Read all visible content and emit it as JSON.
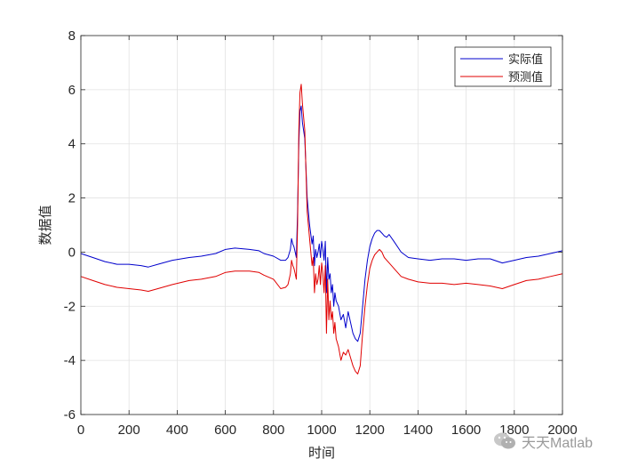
{
  "chart_data": {
    "type": "line",
    "xlabel": "时间",
    "ylabel": "数据值",
    "xlim": [
      0,
      2000
    ],
    "ylim": [
      -6,
      8
    ],
    "xticks": [
      0,
      200,
      400,
      600,
      800,
      1000,
      1200,
      1400,
      1600,
      1800,
      2000
    ],
    "yticks": [
      -6,
      -4,
      -2,
      0,
      2,
      4,
      6,
      8
    ],
    "grid": true,
    "legend_position": "top-right",
    "series": [
      {
        "name": "实际值",
        "color": "#0000cc",
        "x": [
          0,
          50,
          100,
          150,
          200,
          250,
          280,
          320,
          380,
          450,
          500,
          560,
          600,
          640,
          700,
          740,
          760,
          800,
          830,
          850,
          860,
          870,
          875,
          880,
          885,
          890,
          895,
          900,
          905,
          910,
          915,
          920,
          930,
          940,
          950,
          960,
          965,
          970,
          975,
          980,
          985,
          990,
          995,
          1000,
          1005,
          1010,
          1015,
          1020,
          1025,
          1030,
          1035,
          1040,
          1045,
          1050,
          1055,
          1060,
          1070,
          1080,
          1090,
          1100,
          1110,
          1120,
          1130,
          1140,
          1150,
          1160,
          1170,
          1180,
          1190,
          1200,
          1210,
          1220,
          1230,
          1240,
          1250,
          1260,
          1270,
          1280,
          1300,
          1330,
          1360,
          1400,
          1450,
          1500,
          1550,
          1600,
          1650,
          1700,
          1750,
          1800,
          1850,
          1900,
          1950,
          2000
        ],
        "y": [
          -0.05,
          -0.2,
          -0.35,
          -0.45,
          -0.45,
          -0.5,
          -0.55,
          -0.45,
          -0.3,
          -0.2,
          -0.15,
          -0.05,
          0.1,
          0.15,
          0.1,
          0.05,
          -0.05,
          -0.15,
          -0.3,
          -0.3,
          -0.2,
          0.1,
          0.5,
          0.3,
          0.2,
          0.0,
          -0.2,
          1.5,
          4.0,
          5.2,
          5.4,
          4.8,
          4.2,
          2.0,
          1.0,
          0.3,
          0.6,
          -0.5,
          0.1,
          -0.2,
          0.0,
          0.3,
          -0.2,
          0.4,
          0.1,
          -0.3,
          0.4,
          -1.5,
          -0.2,
          -1.0,
          -0.8,
          -1.5,
          -1.2,
          -2.0,
          -1.5,
          -1.8,
          -2.0,
          -2.5,
          -2.3,
          -2.8,
          -2.2,
          -2.6,
          -3.0,
          -3.2,
          -3.3,
          -3.0,
          -2.0,
          -1.0,
          -0.3,
          0.2,
          0.5,
          0.7,
          0.8,
          0.8,
          0.7,
          0.6,
          0.55,
          0.65,
          0.4,
          0.0,
          -0.2,
          -0.25,
          -0.3,
          -0.25,
          -0.25,
          -0.3,
          -0.25,
          -0.25,
          -0.4,
          -0.3,
          -0.2,
          -0.15,
          -0.05,
          0.05
        ]
      },
      {
        "name": "预测值",
        "color": "#e00000",
        "x": [
          0,
          50,
          100,
          150,
          200,
          250,
          280,
          320,
          380,
          450,
          500,
          560,
          600,
          640,
          700,
          740,
          760,
          800,
          830,
          850,
          860,
          870,
          875,
          880,
          885,
          890,
          895,
          900,
          905,
          910,
          915,
          920,
          930,
          940,
          950,
          960,
          965,
          970,
          975,
          980,
          985,
          990,
          995,
          1000,
          1005,
          1010,
          1015,
          1020,
          1025,
          1030,
          1035,
          1040,
          1045,
          1050,
          1055,
          1060,
          1070,
          1080,
          1090,
          1100,
          1110,
          1120,
          1130,
          1140,
          1150,
          1160,
          1170,
          1180,
          1190,
          1200,
          1210,
          1220,
          1230,
          1240,
          1250,
          1260,
          1270,
          1280,
          1300,
          1330,
          1360,
          1400,
          1450,
          1500,
          1550,
          1600,
          1650,
          1700,
          1750,
          1800,
          1850,
          1900,
          1950,
          2000
        ],
        "y": [
          -0.9,
          -1.05,
          -1.2,
          -1.3,
          -1.35,
          -1.4,
          -1.45,
          -1.35,
          -1.2,
          -1.05,
          -1.0,
          -0.9,
          -0.75,
          -0.7,
          -0.7,
          -0.75,
          -0.85,
          -1.0,
          -1.35,
          -1.3,
          -1.2,
          -0.8,
          -0.3,
          -0.5,
          -0.6,
          -0.8,
          -1.0,
          1.0,
          4.5,
          5.9,
          6.2,
          5.5,
          4.5,
          1.5,
          0.5,
          -0.5,
          -0.2,
          -1.5,
          -0.8,
          -1.2,
          -1.0,
          -0.5,
          -1.2,
          -0.4,
          -0.8,
          -1.5,
          -0.5,
          -3.0,
          -1.0,
          -2.5,
          -1.8,
          -2.5,
          -2.2,
          -3.0,
          -2.6,
          -3.2,
          -3.5,
          -4.0,
          -3.7,
          -3.8,
          -3.6,
          -3.9,
          -4.2,
          -4.4,
          -4.5,
          -4.2,
          -3.0,
          -2.0,
          -1.2,
          -0.6,
          -0.3,
          -0.1,
          0.0,
          0.1,
          0.0,
          -0.2,
          -0.3,
          -0.4,
          -0.6,
          -0.9,
          -1.0,
          -1.1,
          -1.15,
          -1.15,
          -1.2,
          -1.15,
          -1.2,
          -1.25,
          -1.35,
          -1.2,
          -1.05,
          -1.0,
          -0.9,
          -0.8
        ]
      }
    ]
  },
  "watermark": {
    "text": "天天Matlab",
    "icon": "wechat-icon"
  }
}
